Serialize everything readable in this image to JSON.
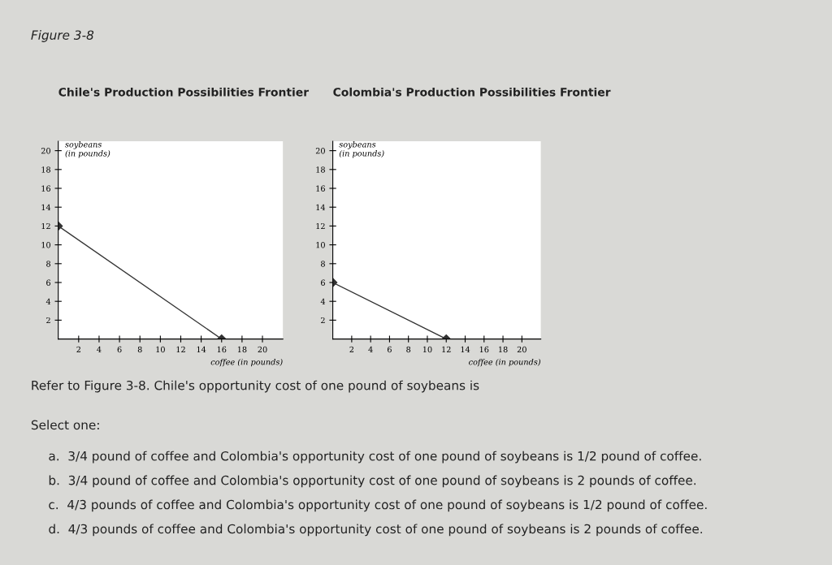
{
  "chart_data": [
    {
      "type": "line",
      "title": "Chile's Production Possibilities Frontier",
      "xlabel": "coffee (in pounds)",
      "ylabel": "soybeans (in pounds)",
      "x": [
        0,
        16
      ],
      "series": [
        {
          "color": "#333333",
          "values": [
            12,
            0
          ]
        }
      ],
      "marker": "diamond",
      "line_style": "solid",
      "grid": false,
      "legend": false,
      "xlim": [
        0,
        22
      ],
      "ylim": [
        0,
        21
      ],
      "xticks": [
        2,
        4,
        6,
        8,
        10,
        12,
        14,
        16,
        18,
        20
      ],
      "yticks": [
        2,
        4,
        6,
        8,
        10,
        12,
        14,
        16,
        18,
        20
      ],
      "annotations": [
        "Figure 3-8",
        "Refer to Figure 3-8. Chile's opportunity cost of one pound of soybeans is",
        "Select one:",
        "a.  3/4 pound of coffee and Colombia's opportunity cost of one pound of soybeans is 1/2 pound of coffee.",
        "b.  3/4 pound of coffee and Colombia's opportunity cost of one pound of soybeans is 2 pounds of coffee.",
        "c.  4/3 pounds of coffee and Colombia's opportunity cost of one pound of soybeans is 1/2 pound of coffee.",
        "d.  4/3 pounds of coffee and Colombia's opportunity cost of one pound of soybeans is 2 pounds of coffee."
      ]
    },
    {
      "type": "line",
      "title": "Colombia's Production Possibilities Frontier",
      "xlabel": "coffee (in pounds)",
      "ylabel": "soybeans (in pounds)",
      "x": [
        0,
        12
      ],
      "series": [
        {
          "color": "#333333",
          "values": [
            6,
            0
          ]
        }
      ],
      "marker": "diamond",
      "line_style": "solid",
      "grid": false,
      "legend": false,
      "xlim": [
        0,
        22
      ],
      "ylim": [
        0,
        21
      ],
      "xticks": [
        2,
        4,
        6,
        8,
        10,
        12,
        14,
        16,
        18,
        20
      ],
      "yticks": [
        2,
        4,
        6,
        8,
        10,
        12,
        14,
        16,
        18,
        20
      ]
    }
  ]
}
